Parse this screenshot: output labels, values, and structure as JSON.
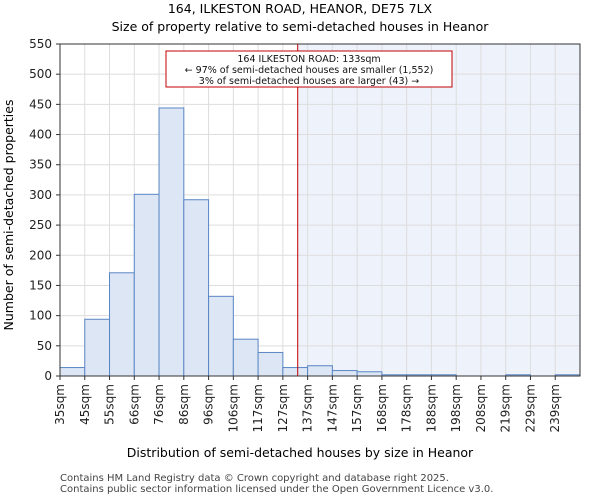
{
  "chart_data": {
    "type": "bar",
    "title": "164, ILKESTON ROAD, HEANOR, DE75 7LX",
    "subtitle": "Size of property relative to semi-detached houses in Heanor",
    "xlabel": "Distribution of semi-detached houses by size in Heanor",
    "ylabel": "Number of semi-detached properties",
    "ylim": [
      0,
      550
    ],
    "yticks": [
      0,
      50,
      100,
      150,
      200,
      250,
      300,
      350,
      400,
      450,
      500,
      550
    ],
    "categories": [
      "35sqm",
      "45sqm",
      "55sqm",
      "66sqm",
      "76sqm",
      "86sqm",
      "96sqm",
      "106sqm",
      "117sqm",
      "127sqm",
      "137sqm",
      "147sqm",
      "157sqm",
      "168sqm",
      "178sqm",
      "188sqm",
      "198sqm",
      "208sqm",
      "219sqm",
      "229sqm",
      "239sqm"
    ],
    "values": [
      14,
      94,
      171,
      301,
      444,
      292,
      132,
      61,
      39,
      14,
      17,
      9,
      7,
      2,
      2,
      2,
      0,
      0,
      2,
      0,
      2
    ],
    "marker": {
      "value_sqm": 133,
      "position_index": 9.6,
      "label_line1": "164 ILKESTON ROAD: 133sqm",
      "label_line2": "← 97% of semi-detached houses are smaller (1,552)",
      "label_line3": "3% of semi-detached houses are larger (43) →"
    },
    "colors": {
      "bar_fill": "#dce6f4",
      "bar_stroke": "#5a86c5",
      "marker": "#c00000",
      "highlight_region": "#eef2fb",
      "grid": "#dddddd"
    },
    "grid": true
  },
  "footer": {
    "line1": "Contains HM Land Registry data © Crown copyright and database right 2025.",
    "line2": "Contains public sector information licensed under the Open Government Licence v3.0."
  }
}
